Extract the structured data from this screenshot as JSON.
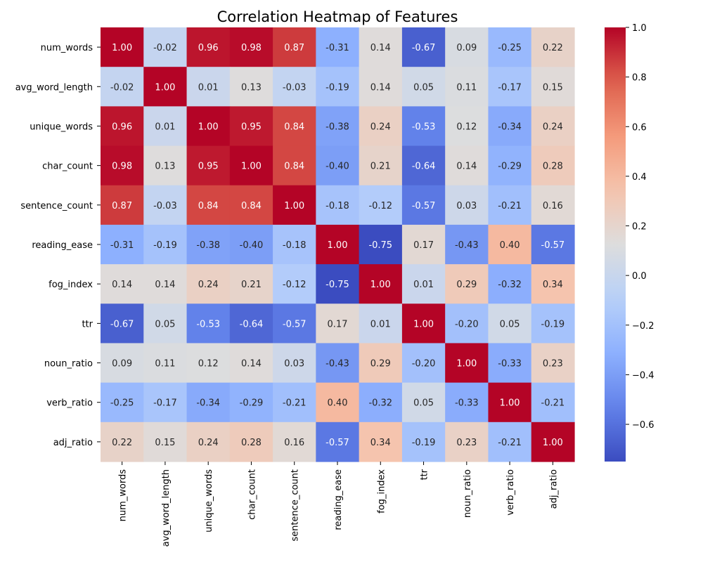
{
  "chart_data": {
    "type": "heatmap",
    "title": "Correlation Heatmap of Features",
    "xlabel": "",
    "ylabel": "",
    "colormap": "coolwarm",
    "value_format": "0.00",
    "categories": [
      "num_words",
      "avg_word_length",
      "unique_words",
      "char_count",
      "sentence_count",
      "reading_ease",
      "fog_index",
      "ttr",
      "noun_ratio",
      "verb_ratio",
      "adj_ratio"
    ],
    "values": [
      [
        1.0,
        -0.02,
        0.96,
        0.98,
        0.87,
        -0.31,
        0.14,
        -0.67,
        0.09,
        -0.25,
        0.22
      ],
      [
        -0.02,
        1.0,
        0.01,
        0.13,
        -0.03,
        -0.19,
        0.14,
        0.05,
        0.11,
        -0.17,
        0.15
      ],
      [
        0.96,
        0.01,
        1.0,
        0.95,
        0.84,
        -0.38,
        0.24,
        -0.53,
        0.12,
        -0.34,
        0.24
      ],
      [
        0.98,
        0.13,
        0.95,
        1.0,
        0.84,
        -0.4,
        0.21,
        -0.64,
        0.14,
        -0.29,
        0.28
      ],
      [
        0.87,
        -0.03,
        0.84,
        0.84,
        1.0,
        -0.18,
        -0.12,
        -0.57,
        0.03,
        -0.21,
        0.16
      ],
      [
        -0.31,
        -0.19,
        -0.38,
        -0.4,
        -0.18,
        1.0,
        -0.75,
        0.17,
        -0.43,
        0.4,
        -0.57
      ],
      [
        0.14,
        0.14,
        0.24,
        0.21,
        -0.12,
        -0.75,
        1.0,
        0.01,
        0.29,
        -0.32,
        0.34
      ],
      [
        -0.67,
        0.05,
        -0.53,
        -0.64,
        -0.57,
        0.17,
        0.01,
        1.0,
        -0.2,
        0.05,
        -0.19
      ],
      [
        0.09,
        0.11,
        0.12,
        0.14,
        0.03,
        -0.43,
        0.29,
        -0.2,
        1.0,
        -0.33,
        0.23
      ],
      [
        -0.25,
        -0.17,
        -0.34,
        -0.29,
        -0.21,
        0.4,
        -0.32,
        0.05,
        -0.33,
        1.0,
        -0.21
      ],
      [
        0.22,
        0.15,
        0.24,
        0.28,
        0.16,
        -0.57,
        0.34,
        -0.19,
        0.23,
        -0.21,
        1.0
      ]
    ],
    "colorbar": {
      "range": [
        -0.75,
        1.0
      ],
      "ticks": [
        "1.0",
        "0.8",
        "0.6",
        "0.4",
        "0.2",
        "0.0",
        "−0.2",
        "−0.4",
        "−0.6"
      ],
      "tick_values": [
        1.0,
        0.8,
        0.6,
        0.4,
        0.2,
        0.0,
        -0.2,
        -0.4,
        -0.6
      ]
    },
    "grid": false,
    "legend": "colorbar-right"
  }
}
